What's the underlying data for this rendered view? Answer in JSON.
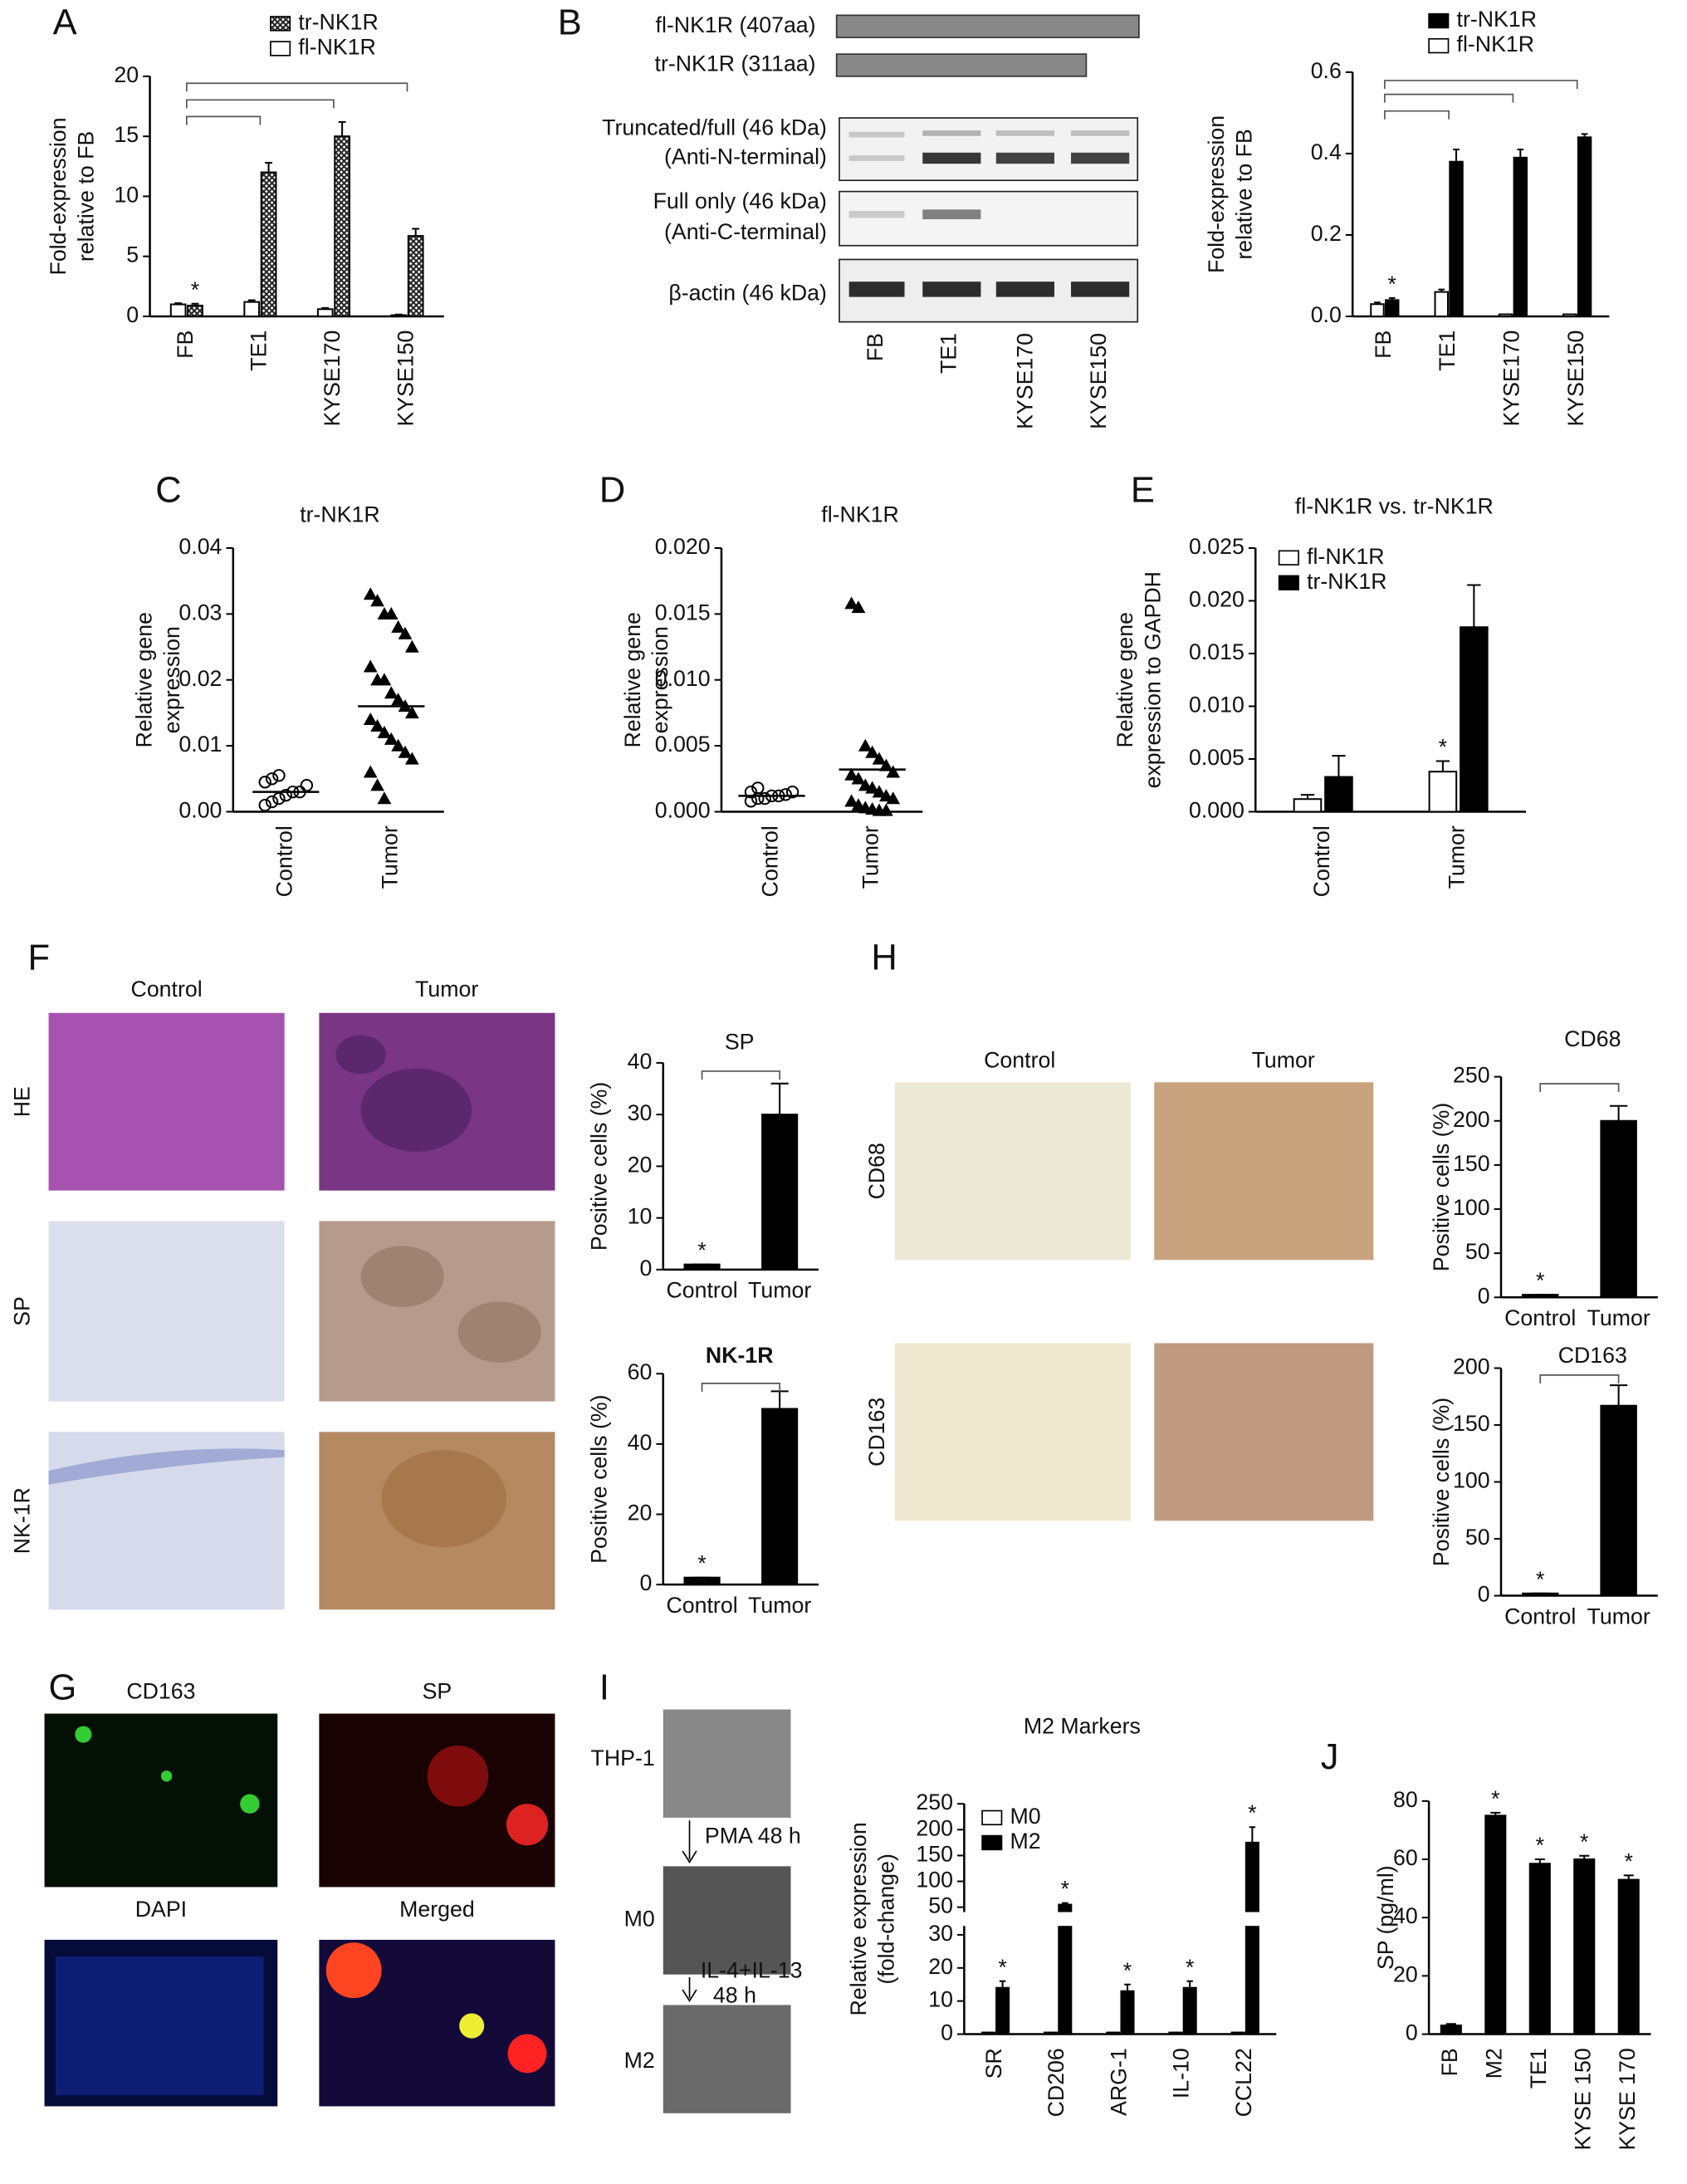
{
  "figure": {
    "panels": [
      "A",
      "B",
      "C",
      "D",
      "E",
      "F",
      "G",
      "H",
      "I",
      "J"
    ],
    "blot": {
      "constructs": [
        "fl-NK1R (407aa)",
        "tr-NK1R  (311aa)"
      ],
      "rows": [
        [
          "Truncated/full (46 kDa)",
          "(Anti-N-terminal)"
        ],
        [
          "Full only (46 kDa)",
          "(Anti-C-terminal)"
        ],
        [
          "β-actin (46 kDa)"
        ]
      ],
      "lanes": [
        "FB",
        "TE1",
        "KYSE170",
        "KYSE150"
      ]
    },
    "F": {
      "columns": [
        "Control",
        "Tumor"
      ],
      "rows": [
        "HE",
        "SP",
        "NK-1R"
      ]
    },
    "G": {
      "labels": [
        "CD163",
        "SP",
        "DAPI",
        "Merged"
      ]
    },
    "H": {
      "columns": [
        "Control",
        "Tumor"
      ],
      "rows": [
        "CD68",
        "CD163"
      ]
    },
    "I": {
      "steps": [
        "THP-1",
        "M0",
        "M2"
      ],
      "treatments": [
        [
          "PMA 48 h"
        ],
        [
          "IL-4+IL-13",
          "48 h"
        ]
      ]
    }
  },
  "chart_data": [
    {
      "type": "bar",
      "ylabel": [
        "Fold-expression",
        "relative to FB"
      ],
      "categories": [
        "FB",
        "TE1",
        "KYSE170",
        "KYSE150"
      ],
      "series": [
        {
          "name": "fl-NK1R",
          "color": "#ffffff",
          "values": [
            1,
            1.2,
            0.6,
            0.1
          ],
          "errors": [
            0.1,
            0.15,
            0.1,
            0.05
          ]
        },
        {
          "name": "tr-NK1R",
          "color": "#555555",
          "pattern": "crosshatch",
          "values": [
            0.9,
            12,
            15,
            6.7
          ],
          "errors": [
            0.15,
            0.8,
            1.2,
            0.6
          ]
        }
      ],
      "legend_order": "reversed",
      "annotation": "*",
      "ylim": [
        0,
        20
      ],
      "yticks": [
        0,
        5,
        10,
        15,
        20
      ]
    },
    {
      "type": "bar",
      "ylabel": [
        "Fold-expression",
        "relative to FB"
      ],
      "categories": [
        "FB",
        "TE1",
        "KYSE170",
        "KYSE150"
      ],
      "series": [
        {
          "name": "fl-NK1R",
          "color": "#ffffff",
          "values": [
            0.03,
            0.06,
            0.005,
            0.005
          ],
          "errors": [
            0.004,
            0.006,
            0,
            0
          ]
        },
        {
          "name": "tr-NK1R",
          "color": "#000000",
          "values": [
            0.04,
            0.38,
            0.39,
            0.44
          ],
          "errors": [
            0.005,
            0.03,
            0.02,
            0.008
          ]
        }
      ],
      "legend_order": "reversed",
      "annotation": "*",
      "ylim": [
        0,
        0.6
      ],
      "yticks": [
        {
          "value": 0,
          "label": "0.0"
        },
        0.2,
        0.4,
        0.6
      ]
    },
    {
      "type": "scatter",
      "title": "tr-NK1R",
      "ylabel": [
        "Relative gene",
        "expression"
      ],
      "categories": [
        "Control",
        "Tumor"
      ],
      "markers": [
        "open-circle",
        "filled-triangle"
      ],
      "groups": [
        [
          0.001,
          0.0015,
          0.002,
          0.0025,
          0.003,
          0.003,
          0.004,
          0.0045,
          0.005,
          0.0055
        ],
        [
          0.033,
          0.032,
          0.03,
          0.03,
          0.028,
          0.027,
          0.025,
          0.022,
          0.02,
          0.02,
          0.018,
          0.017,
          0.016,
          0.015,
          0.014,
          0.013,
          0.012,
          0.011,
          0.01,
          0.009,
          0.008,
          0.006,
          0.004,
          0.002
        ]
      ],
      "means": [
        0.003,
        0.016
      ],
      "ylim": [
        0,
        0.04
      ],
      "yticks": [
        {
          "value": 0,
          "label": "0.00"
        },
        0.01,
        0.02,
        0.03,
        0.04
      ]
    },
    {
      "type": "scatter",
      "title": "fl-NK1R",
      "ylabel": [
        "Relative gene",
        "expression"
      ],
      "categories": [
        "Control",
        "Tumor"
      ],
      "markers": [
        "open-circle",
        "filled-triangle"
      ],
      "groups": [
        [
          0.0008,
          0.001,
          0.001,
          0.0012,
          0.0012,
          0.0013,
          0.0015,
          0.0015,
          0.0018
        ],
        [
          0.0158,
          0.0155,
          0.005,
          0.0045,
          0.004,
          0.0035,
          0.003,
          0.0028,
          0.0025,
          0.002,
          0.0018,
          0.0015,
          0.0012,
          0.001,
          0.0008,
          0.0005,
          0.0003,
          0.0002,
          0.0001,
          0.0001
        ]
      ],
      "means": [
        0.0012,
        0.0032
      ],
      "ylim": [
        0,
        0.02
      ],
      "yticks": [
        {
          "value": 0,
          "label": "0.000"
        },
        0.005,
        {
          "value": 0.01,
          "label": "0.010"
        },
        0.015,
        {
          "value": 0.02,
          "label": "0.020"
        }
      ]
    },
    {
      "type": "bar",
      "title": "fl-NK1R vs. tr-NK1R",
      "ylabel": [
        "Relative gene",
        "expression to GAPDH"
      ],
      "categories": [
        "Control",
        "Tumor"
      ],
      "series": [
        {
          "name": "fl-NK1R",
          "color": "#ffffff",
          "values": [
            0.0012,
            0.0038
          ],
          "errors": [
            0.0004,
            0.001
          ]
        },
        {
          "name": "tr-NK1R",
          "color": "#000000",
          "values": [
            0.0033,
            0.0175
          ],
          "errors": [
            0.002,
            0.004
          ]
        }
      ],
      "annotation": "*",
      "ylim": [
        0,
        0.025
      ],
      "yticks": [
        {
          "value": 0,
          "label": "0.000"
        },
        0.005,
        {
          "value": 0.01,
          "label": "0.010"
        },
        0.015,
        {
          "value": 0.02,
          "label": "0.020"
        },
        0.025
      ]
    },
    {
      "type": "bar",
      "title": "SP",
      "ylabel": [
        "Positive cells (%)"
      ],
      "categories": [
        "Control",
        "Tumor"
      ],
      "values": [
        1,
        30
      ],
      "errors": [
        0,
        6
      ],
      "color": "#000000",
      "annotation": "*",
      "ylim": [
        0,
        40
      ],
      "yticks": [
        0,
        10,
        20,
        30,
        40
      ]
    },
    {
      "type": "bar",
      "title": "NK-1R",
      "title_weight": "bold",
      "ylabel": [
        "Positive cells (%)"
      ],
      "categories": [
        "Control",
        "Tumor"
      ],
      "values": [
        2,
        50
      ],
      "errors": [
        0,
        5
      ],
      "color": "#000000",
      "annotation": "*",
      "ylim": [
        0,
        60
      ],
      "yticks": [
        0,
        20,
        40,
        60
      ]
    },
    {
      "type": "bar",
      "title": "CD68",
      "ylabel": [
        "Positive cells (%)"
      ],
      "categories": [
        "Control",
        "Tumor"
      ],
      "values": [
        3,
        200
      ],
      "errors": [
        0,
        17
      ],
      "color": "#000000",
      "annotation": "*",
      "ylim": [
        0,
        250
      ],
      "yticks": [
        0,
        50,
        100,
        150,
        200,
        250
      ]
    },
    {
      "type": "bar",
      "title": "CD163",
      "ylabel": [
        "Positive cells (%)"
      ],
      "categories": [
        "Control",
        "Tumor"
      ],
      "values": [
        2,
        167
      ],
      "errors": [
        0,
        18
      ],
      "color": "#000000",
      "annotation": "*",
      "ylim": [
        0,
        200
      ],
      "yticks": [
        0,
        50,
        100,
        150,
        200
      ]
    },
    {
      "type": "bar",
      "title": "M2 Markers",
      "ylabel": [
        "Relative expression",
        "(fold-change)"
      ],
      "categories": [
        "SR",
        "CD206",
        "ARG-1",
        "IL-10",
        "CCL22"
      ],
      "series": [
        {
          "name": "M0",
          "color": "#ffffff",
          "values": [
            0.5,
            0.5,
            0.5,
            0.5,
            0.5
          ],
          "errors": [
            0,
            0,
            0,
            0,
            0
          ]
        },
        {
          "name": "M2",
          "color": "#000000",
          "values": [
            14,
            55,
            13,
            14,
            175
          ],
          "errors": [
            2,
            3,
            2,
            2,
            30
          ]
        }
      ],
      "annotation": "*",
      "ylim": [
        0,
        250
      ],
      "ybreak": [
        32,
        45
      ],
      "yticks": [
        0,
        10,
        20,
        30,
        50,
        100,
        150,
        200,
        250
      ]
    },
    {
      "type": "bar",
      "ylabel": [
        "SP (pg/ml)"
      ],
      "categories": [
        "FB",
        "M2",
        "TE1",
        "KYSE 150",
        "KYSE 170"
      ],
      "values": [
        3,
        75,
        58.5,
        60,
        53
      ],
      "errors": [
        0.5,
        1,
        1.5,
        1.2,
        1.5
      ],
      "color": "#000000",
      "annotation": "*",
      "ylim": [
        0,
        80
      ],
      "yticks": [
        0,
        20,
        40,
        60,
        80
      ]
    }
  ]
}
